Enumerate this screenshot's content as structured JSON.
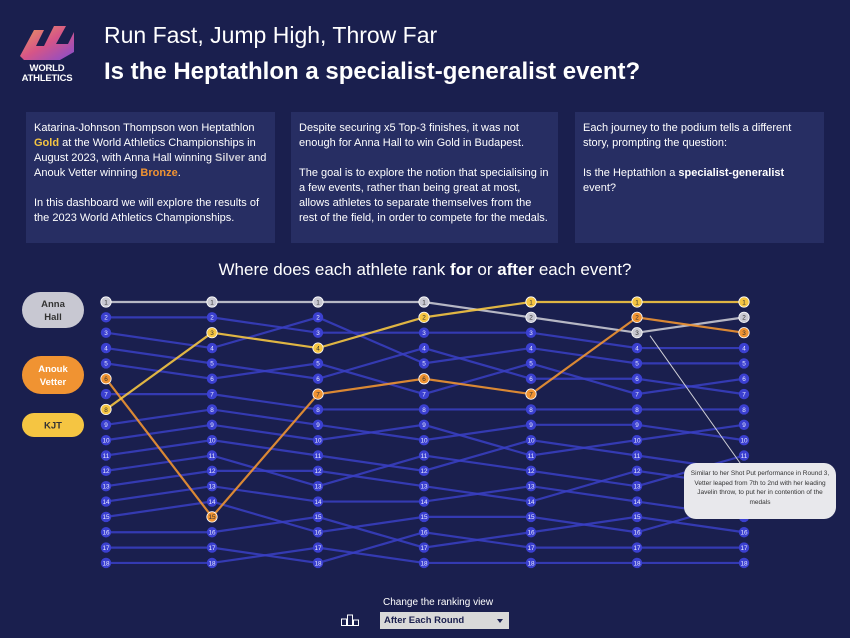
{
  "header": {
    "logo_text_line1": "WORLD",
    "logo_text_line2": "ATHLETICS",
    "subtitle": "Run Fast, Jump High, Throw Far",
    "title": "Is the Heptathlon a specialist-generalist event?"
  },
  "cards": {
    "card1": {
      "p1_a": "Katarina-Johnson Thompson won Heptathlon ",
      "p1_gold": "Gold",
      "p1_b": " at the World Athletics Championships in August 2023, with Anna Hall winning ",
      "p1_silver": "Silver",
      "p1_c": " and Anouk Vetter winning ",
      "p1_bronze": "Bronze",
      "p1_d": ".",
      "p2": "In this dashboard we will explore the results of the 2023 World Athletics Championships."
    },
    "card2": {
      "p1": "Despite securing x5 Top-3 finishes, it was not enough for Anna Hall to win Gold in Budapest.",
      "p2": "The goal is to explore the notion that specialising in a few events, rather than being great at most, allows athletes to separate themselves from the rest of the field, in order to compete for the medals."
    },
    "card3": {
      "p1": "Each journey to the podium tells a different story, prompting the question:",
      "p2_a": "Is the Heptathlon a ",
      "p2_bold": "specialist-generalist",
      "p2_b": " event?"
    }
  },
  "chart_heading": {
    "a": "Where does each athlete rank ",
    "for": "for",
    "or": " or ",
    "after": "after",
    "b": " each event?"
  },
  "annotation": "Similar to her Shot Put performance in Round 3, Vetter leaped from 7th to 2nd with her leading Javelin throw, to put her in contention of the medals",
  "control": {
    "label": "Change the ranking view",
    "selected": "After Each Round"
  },
  "colors": {
    "background": "#1a1f4e",
    "card": "#272e63",
    "field": "#3a3fc4",
    "hall": "#c8c8d2",
    "vetter": "#f09332",
    "kjt": "#f5c542"
  },
  "chart_data": {
    "type": "line",
    "rounds": 7,
    "ranks": [
      1,
      2,
      3,
      4,
      5,
      6,
      7,
      8,
      9,
      10,
      11,
      12,
      13,
      14,
      15,
      16,
      17,
      18
    ],
    "series": [
      {
        "name": "Anna Hall",
        "label_lines": [
          "Anna",
          "Hall"
        ],
        "color": "#c8c8d2",
        "values": [
          1,
          1,
          1,
          1,
          2,
          3,
          2
        ]
      },
      {
        "name": "Anouk Vetter",
        "label_lines": [
          "Anouk",
          "Vetter"
        ],
        "color": "#f09332",
        "values": [
          6,
          15,
          7,
          6,
          7,
          2,
          3
        ]
      },
      {
        "name": "KJT",
        "label_lines": [
          "KJT"
        ],
        "color": "#f5c542",
        "values": [
          8,
          3,
          4,
          2,
          1,
          1,
          1
        ]
      }
    ],
    "field_lines": [
      [
        2,
        2,
        3,
        3,
        3,
        4,
        4
      ],
      [
        3,
        4,
        2,
        5,
        4,
        5,
        5
      ],
      [
        4,
        5,
        6,
        4,
        6,
        6,
        7
      ],
      [
        5,
        6,
        5,
        7,
        5,
        7,
        6
      ],
      [
        7,
        7,
        8,
        8,
        8,
        8,
        8
      ],
      [
        9,
        8,
        9,
        10,
        9,
        9,
        10
      ],
      [
        10,
        9,
        10,
        9,
        11,
        10,
        9
      ],
      [
        11,
        10,
        11,
        12,
        10,
        11,
        12
      ],
      [
        12,
        11,
        13,
        11,
        12,
        13,
        11
      ],
      [
        13,
        12,
        12,
        13,
        14,
        12,
        13
      ],
      [
        14,
        13,
        14,
        14,
        13,
        14,
        15
      ],
      [
        15,
        14,
        16,
        15,
        15,
        16,
        14
      ],
      [
        16,
        16,
        15,
        17,
        16,
        15,
        16
      ],
      [
        17,
        17,
        18,
        16,
        17,
        17,
        17
      ],
      [
        18,
        18,
        17,
        18,
        18,
        18,
        18
      ]
    ]
  }
}
